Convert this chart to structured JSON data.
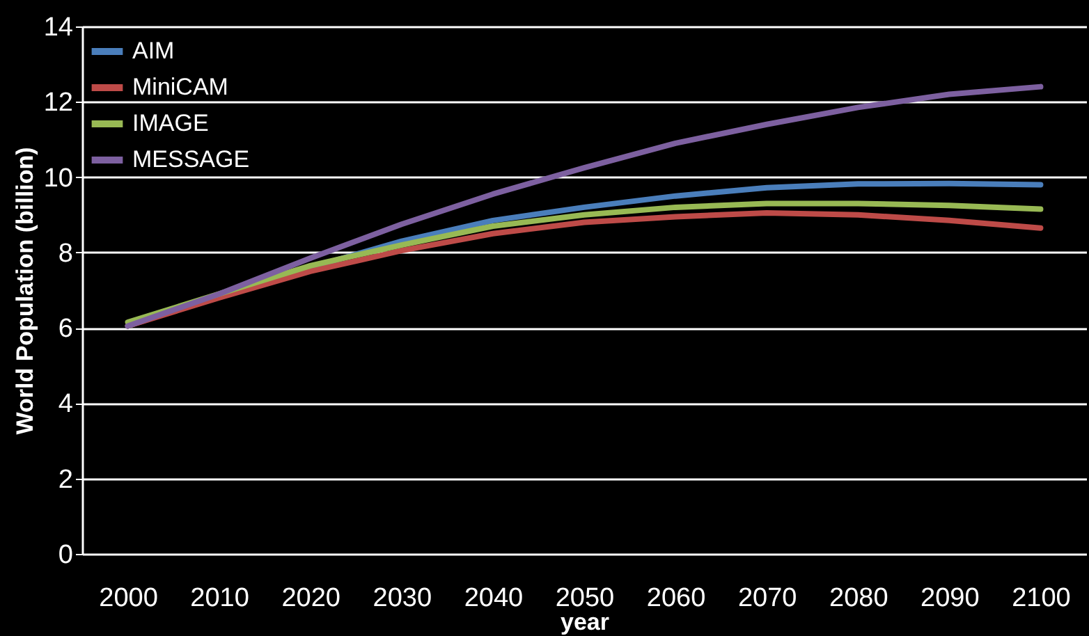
{
  "chart_data": {
    "type": "line",
    "xlabel": "year",
    "ylabel": "World Population (billion)",
    "categories": [
      "2000",
      "2010",
      "2020",
      "2030",
      "2040",
      "2050",
      "2060",
      "2070",
      "2080",
      "2090",
      "2100"
    ],
    "series": [
      {
        "name": "AIM",
        "color": "#4a7ebb",
        "values": [
          6.05,
          6.85,
          7.6,
          8.3,
          8.85,
          9.2,
          9.5,
          9.72,
          9.82,
          9.83,
          9.8
        ]
      },
      {
        "name": "MiniCAM",
        "color": "#be4b48",
        "values": [
          6.05,
          6.8,
          7.5,
          8.05,
          8.5,
          8.8,
          8.95,
          9.05,
          9.0,
          8.85,
          8.65
        ]
      },
      {
        "name": "IMAGE",
        "color": "#98b954",
        "values": [
          6.15,
          6.9,
          7.65,
          8.2,
          8.7,
          9.0,
          9.2,
          9.3,
          9.3,
          9.25,
          9.15
        ]
      },
      {
        "name": "MESSAGE",
        "color": "#7d60a0",
        "values": [
          6.05,
          6.9,
          7.85,
          8.75,
          9.55,
          10.25,
          10.9,
          11.4,
          11.85,
          12.2,
          12.4
        ]
      }
    ],
    "ylim": [
      0,
      14
    ],
    "yticks": [
      0,
      2,
      4,
      6,
      8,
      10,
      12,
      14
    ],
    "grid": "y",
    "legend": "top left",
    "marker": "none",
    "line_style": "solid"
  }
}
